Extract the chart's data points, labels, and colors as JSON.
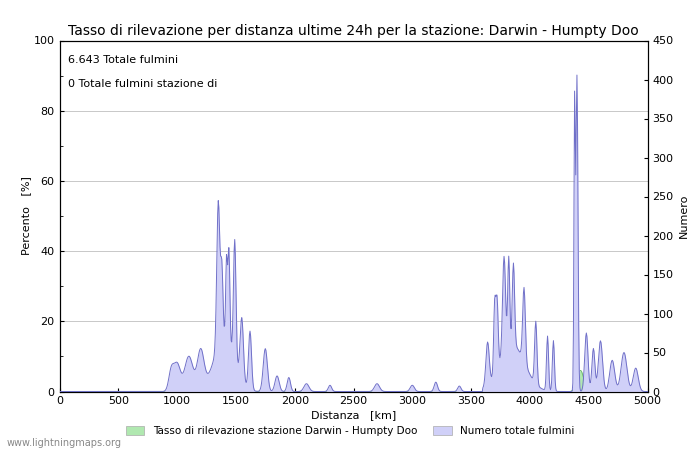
{
  "title": "Tasso di rilevazione per distanza ultime 24h per la stazione: Darwin - Humpty Doo",
  "xlabel": "Distanza   [km]",
  "ylabel_left": "Percento   [%]",
  "ylabel_right": "Numero",
  "annotation_line1": "6.643 Totale fulmini",
  "annotation_line2": "0 Totale fulmini stazione di",
  "xlim": [
    0,
    5000
  ],
  "ylim_left": [
    0,
    100
  ],
  "ylim_right": [
    0,
    450
  ],
  "xticks": [
    0,
    500,
    1000,
    1500,
    2000,
    2500,
    3000,
    3500,
    4000,
    4500,
    5000
  ],
  "yticks_left": [
    0,
    20,
    40,
    60,
    80,
    100
  ],
  "yticks_right": [
    0,
    50,
    100,
    150,
    200,
    250,
    300,
    350,
    400,
    450
  ],
  "legend_label_green": "Tasso di rilevazione stazione Darwin - Humpty Doo",
  "legend_label_blue": "Numero totale fulmini",
  "fill_color_blue": "#d0d0f8",
  "line_color_blue": "#7070c8",
  "fill_color_green": "#b0e8b0",
  "line_color_green": "#70b870",
  "watermark": "www.lightningmaps.org",
  "background_color": "#ffffff",
  "grid_color": "#c8c8c8",
  "title_fontsize": 10,
  "axis_fontsize": 8,
  "tick_fontsize": 8,
  "annot_fontsize": 8
}
